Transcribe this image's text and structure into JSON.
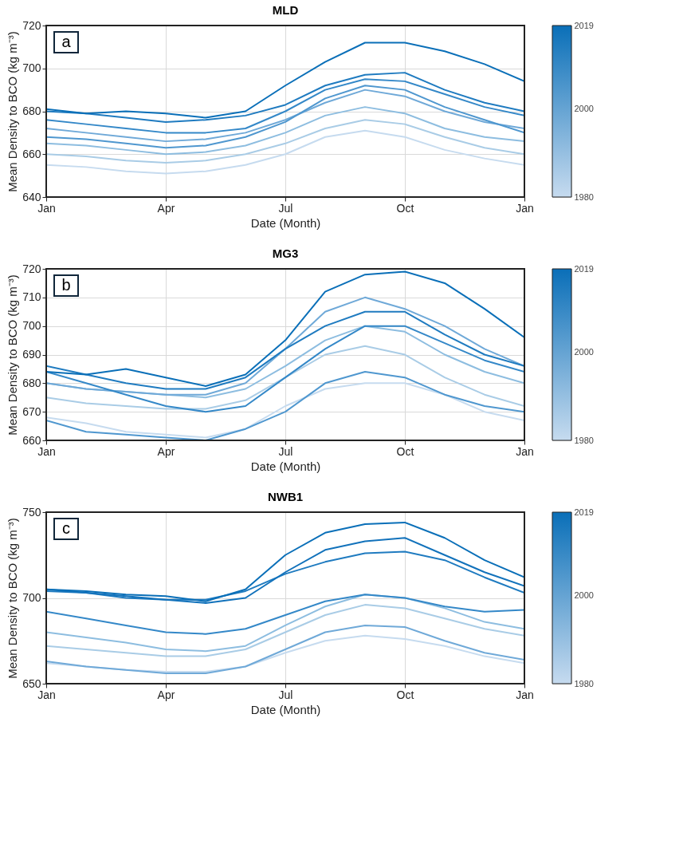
{
  "chart_data": [
    {
      "type": "line",
      "title": "MLD",
      "xlabel": "Date (Month)",
      "ylabel": "Mean Density to BCO (kg m⁻³)",
      "annotations": [
        "a"
      ],
      "categories": [
        "Jan",
        null,
        null,
        "Apr",
        null,
        null,
        "Jul",
        null,
        null,
        "Oct",
        null,
        null,
        "Jan"
      ],
      "ylim": [
        640,
        720
      ],
      "yticks": [
        640,
        660,
        680,
        700,
        720
      ],
      "grid": true,
      "clim": [
        1980,
        2019
      ],
      "cticks": [
        1980,
        2000,
        2019
      ],
      "line_style": "solid",
      "series": [
        {
          "color": "#c6dbef",
          "values": [
            655,
            654,
            652,
            651,
            652,
            655,
            660,
            668,
            671,
            668,
            662,
            658,
            655
          ]
        },
        {
          "color": "#a9cce6",
          "values": [
            660,
            659,
            657,
            656,
            657,
            660,
            665,
            672,
            676,
            674,
            668,
            663,
            660
          ]
        },
        {
          "color": "#8dbde0",
          "values": [
            665,
            664,
            662,
            660,
            661,
            664,
            670,
            678,
            682,
            679,
            672,
            668,
            666
          ]
        },
        {
          "color": "#6fa9d8",
          "values": [
            672,
            670,
            668,
            666,
            667,
            670,
            676,
            684,
            690,
            687,
            680,
            675,
            672
          ]
        },
        {
          "color": "#4f97cf",
          "values": [
            668,
            667,
            665,
            663,
            664,
            668,
            675,
            686,
            692,
            690,
            682,
            676,
            670
          ]
        },
        {
          "color": "#3488c8",
          "values": [
            676,
            674,
            672,
            670,
            670,
            672,
            680,
            690,
            695,
            694,
            688,
            682,
            678
          ]
        },
        {
          "color": "#1f7bc0",
          "values": [
            680,
            679,
            677,
            675,
            676,
            678,
            683,
            692,
            697,
            698,
            690,
            684,
            680
          ]
        },
        {
          "color": "#0a6fb8",
          "values": [
            681,
            679,
            680,
            679,
            677,
            680,
            692,
            703,
            712,
            712,
            708,
            702,
            694
          ]
        }
      ]
    },
    {
      "type": "line",
      "title": "MG3",
      "xlabel": "Date (Month)",
      "ylabel": "Mean Density to BCO (kg m⁻³)",
      "annotations": [
        "b"
      ],
      "categories": [
        "Jan",
        null,
        null,
        "Apr",
        null,
        null,
        "Jul",
        null,
        null,
        "Oct",
        null,
        null,
        "Jan"
      ],
      "ylim": [
        660,
        720
      ],
      "yticks": [
        660,
        670,
        680,
        690,
        700,
        710,
        720
      ],
      "grid": true,
      "clim": [
        1980,
        2019
      ],
      "cticks": [
        1980,
        2000,
        2019
      ],
      "line_style": "solid",
      "series": [
        {
          "color": "#c6dbef",
          "values": [
            668,
            666,
            663,
            662,
            661,
            664,
            672,
            678,
            680,
            680,
            676,
            670,
            667
          ]
        },
        {
          "color": "#a9cce6",
          "values": [
            675,
            673,
            672,
            671,
            671,
            674,
            682,
            690,
            693,
            690,
            682,
            676,
            672
          ]
        },
        {
          "color": "#8dbde0",
          "values": [
            680,
            678,
            677,
            676,
            675,
            678,
            686,
            695,
            700,
            698,
            690,
            684,
            680
          ]
        },
        {
          "color": "#6fa9d8",
          "values": [
            680,
            678,
            677,
            676,
            676,
            680,
            692,
            705,
            710,
            706,
            700,
            692,
            686
          ]
        },
        {
          "color": "#4f97cf",
          "values": [
            667,
            663,
            662,
            661,
            660,
            664,
            670,
            680,
            684,
            682,
            676,
            672,
            670
          ]
        },
        {
          "color": "#3488c8",
          "values": [
            684,
            680,
            676,
            672,
            670,
            672,
            682,
            692,
            700,
            700,
            694,
            688,
            684
          ]
        },
        {
          "color": "#1f7bc0",
          "values": [
            686,
            683,
            680,
            678,
            678,
            682,
            692,
            700,
            705,
            705,
            697,
            690,
            686
          ]
        },
        {
          "color": "#0a6fb8",
          "values": [
            684,
            683,
            685,
            682,
            679,
            683,
            695,
            712,
            718,
            719,
            715,
            706,
            696
          ]
        }
      ]
    },
    {
      "type": "line",
      "title": "NWB1",
      "xlabel": "Date (Month)",
      "ylabel": "Mean Density to BCO (kg m⁻³)",
      "annotations": [
        "c"
      ],
      "categories": [
        "Jan",
        null,
        null,
        "Apr",
        null,
        null,
        "Jul",
        null,
        null,
        "Oct",
        null,
        null,
        "Jan"
      ],
      "ylim": [
        650,
        750
      ],
      "yticks": [
        650,
        700,
        750
      ],
      "grid": true,
      "clim": [
        1980,
        2019
      ],
      "cticks": [
        1980,
        2000,
        2019
      ],
      "line_style": "solid",
      "series": [
        {
          "color": "#c6dbef",
          "values": [
            662,
            660,
            658,
            657,
            657,
            660,
            668,
            675,
            678,
            676,
            672,
            666,
            662
          ]
        },
        {
          "color": "#a9cce6",
          "values": [
            672,
            670,
            668,
            666,
            666,
            670,
            680,
            690,
            696,
            694,
            688,
            682,
            678
          ]
        },
        {
          "color": "#8dbde0",
          "values": [
            680,
            677,
            674,
            670,
            669,
            672,
            684,
            695,
            702,
            700,
            694,
            686,
            682
          ]
        },
        {
          "color": "#6fa9d8",
          "values": [
            663,
            660,
            658,
            656,
            656,
            660,
            670,
            680,
            684,
            683,
            675,
            668,
            664
          ]
        },
        {
          "color": "#3488c8",
          "values": [
            692,
            688,
            684,
            680,
            679,
            682,
            690,
            698,
            702,
            700,
            695,
            692,
            693
          ]
        },
        {
          "color": "#1f7bc0",
          "values": [
            704,
            703,
            700,
            699,
            699,
            704,
            714,
            721,
            726,
            727,
            722,
            712,
            703
          ]
        },
        {
          "color": "#1272bb",
          "values": [
            705,
            703,
            701,
            699,
            697,
            700,
            715,
            728,
            733,
            735,
            725,
            715,
            707
          ]
        },
        {
          "color": "#0a6fb8",
          "values": [
            705,
            704,
            702,
            701,
            698,
            705,
            725,
            738,
            743,
            744,
            735,
            722,
            712
          ]
        }
      ]
    }
  ]
}
